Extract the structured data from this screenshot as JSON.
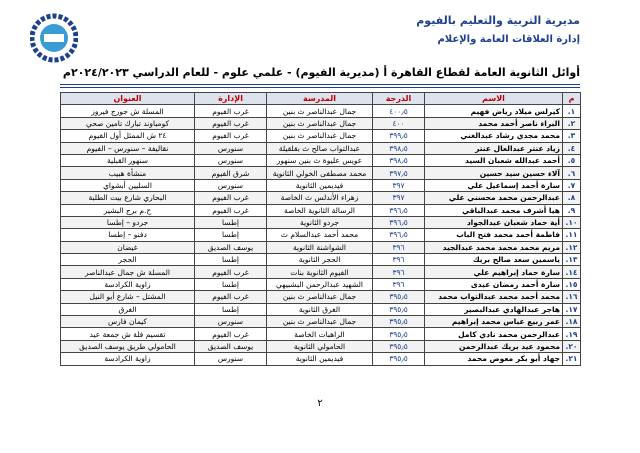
{
  "header": {
    "line1": "مديرية التربية والتعليم بالفيوم",
    "line2": "إدارة العلاقات العامة والإعلام",
    "title": "أوائل الثانوية العامة لقطاع القاهرة أ (مديرية الفيوم) - علمي علوم - للعام الدراسي ٢٠٢٤/٢٠٢٣م"
  },
  "table": {
    "columns": [
      "م",
      "الاسم",
      "الدرجة",
      "المدرسة",
      "الإدارة",
      "العنوان"
    ],
    "rows": [
      [
        "١.",
        "كيرلس ميلاد رياض فهيم",
        "٤٠٠٫٥",
        "جمال عبدالناصر ث بنين",
        "غرب الفيوم",
        "المسلة ش جورج فيروز"
      ],
      [
        "٢.",
        "البراء ناصر أحمد محمد",
        "٤٠٠",
        "جمال عبدالناصر ث بنين",
        "غرب الفيوم",
        "كومباوند تبارك تامين صحي"
      ],
      [
        "٣.",
        "محمد مجدي رشاد عبدالغني",
        "٣٩٩٫٥",
        "جمال عبدالناصر ث بنين",
        "غرب الفيوم",
        "٢٤ ش الممثل أول الفيوم"
      ],
      [
        "٤.",
        "زياد عنتر عبدالعال عنتر",
        "٣٩٨٫٥",
        "عبدالتواب صالح ث بقلقيلة",
        "سنورس",
        "نقاليفة – سنورس – الفيوم"
      ],
      [
        "٥.",
        "أحمد عبدالله شعبان السيد",
        "٣٩٨٫٥",
        "عويس عليوة ث بنين سنهور",
        "سنورس",
        "سنهور القبلية"
      ],
      [
        "٦.",
        "آلاء حسين سيد حسين",
        "٣٩٧٫٥",
        "محمد مصطفى الخولي الثانوية",
        "شرق الفيوم",
        "منشأة هبيب"
      ],
      [
        "٧.",
        "سارة أحمد إسماعيل علي",
        "٣٩٧",
        "فيديمين الثانوية",
        "سنورس",
        "السليين أبشواي"
      ],
      [
        "٨.",
        "عبدالرحمن محمد محسني علي",
        "٣٩٧",
        "زهراء الأندلس ث الخاصة",
        "غرب الفيوم",
        "البحاري شارع بيت الطلبة"
      ],
      [
        "٩.",
        "هيا أشرف محمد عبدالباقي",
        "٣٩٦٫٥",
        "الرسالة الثانوية الخاصة",
        "غرب الفيوم",
        "ح.م برج البشير"
      ],
      [
        "١٠.",
        "أية حماد شعبان عبدالجواد",
        "٣٩٦٫٥",
        "جردو الثانوية",
        "إطسا",
        "جردو – إطسا"
      ],
      [
        "١١.",
        "فاطمة أحمد محمد فتح الباب",
        "٣٩٦٫٥",
        "محمد أحمد عبدالسلام ث",
        "إطسا",
        "دفنو – إطسا"
      ],
      [
        "١٢.",
        "مريم محمد محمد محمد عبدالجيد",
        "٣٩٦",
        "الشواشنة الثانوية",
        "يوسف الصديق",
        "غيضان"
      ],
      [
        "١٣.",
        "ياسمين سعد صالح بريك",
        "٣٩٦",
        "الحجر الثانوية",
        "إطسا",
        "الحجر"
      ],
      [
        "١٤.",
        "سارة حماد إبراهيم علي",
        "٣٩٦",
        "الفيوم الثانوية بنات",
        "غرب الفيوم",
        "المسلة ش جمال عبدالناصر"
      ],
      [
        "١٥.",
        "سارة أحمد رمضان عيدى",
        "٣٩٦",
        "الشهيد عبدالرحمن البشبيهي",
        "إطسا",
        "زاوية الكرادسة"
      ],
      [
        "١٦.",
        "محمد أحمد محمد عبدالتواب محمد",
        "٣٩٥٫٥",
        "جمال عبدالناصر ث بنين",
        "غرب الفيوم",
        "المشتل – شارع أبو النيل"
      ],
      [
        "١٧.",
        "هاجر عبدالهادي عبدالبصير",
        "٣٩٥٫٥",
        "الغرق الثانوية",
        "إطسا",
        "الغرق"
      ],
      [
        "١٨.",
        "عمر ربيع عباس محمد إبراهيم",
        "٣٩٥٫٥",
        "جمال عبدالناصر ث بنين",
        "سنورس",
        "كيمان فارس"
      ],
      [
        "١٩.",
        "عبدالرحمن محمد نادي كامل",
        "٣٩٥٫٥",
        "الراهبات الخاصة",
        "غرب الفيوم",
        "تقسيم فلة ش جمعة عيد"
      ],
      [
        "٢٠.",
        "محمود عيد بريك عبدالرحمن",
        "٣٩٥٫٥",
        "الحامولي الثانوية",
        "يوسف الصديق",
        "الحامولي طريق يوسف الصديق"
      ],
      [
        "٢١.",
        "جهاد أبو بكر معوض محمد",
        "٣٩٥٫٥",
        "فيديمين الثانوية",
        "سنورس",
        "زاوية الكرادسة"
      ]
    ]
  },
  "footer": {
    "page": "٢"
  }
}
